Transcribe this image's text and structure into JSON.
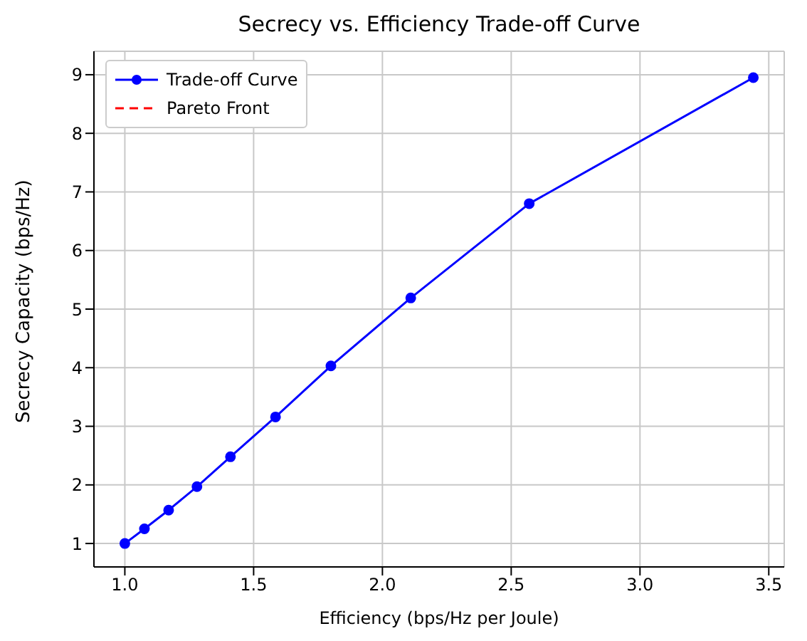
{
  "chart_data": {
    "type": "line",
    "title": "Secrecy vs. Efficiency Trade-off Curve",
    "xlabel": "Efficiency (bps/Hz per Joule)",
    "ylabel": "Secrecy Capacity (bps/Hz)",
    "x": [
      1.0,
      1.076,
      1.17,
      1.28,
      1.41,
      1.585,
      1.8,
      2.11,
      2.57,
      3.44
    ],
    "series": [
      {
        "name": "Trade-off Curve",
        "color": "#0000ff",
        "marker": "circle",
        "line_style": "solid",
        "values": [
          1.0,
          1.25,
          1.57,
          1.97,
          2.48,
          3.16,
          4.03,
          5.19,
          6.8,
          8.95
        ]
      },
      {
        "name": "Pareto Front",
        "color": "#ff0000",
        "marker": "none",
        "line_style": "dashed",
        "values": [
          null,
          null,
          null,
          null,
          null,
          null,
          null,
          null,
          null,
          null
        ]
      }
    ],
    "xlim": [
      0.88,
      3.56
    ],
    "xticks": [
      {
        "value": 1.0,
        "label": "1.0"
      },
      {
        "value": 1.5,
        "label": "1.5"
      },
      {
        "value": 2.0,
        "label": "2.0"
      },
      {
        "value": 2.5,
        "label": "2.5"
      },
      {
        "value": 3.0,
        "label": "3.0"
      },
      {
        "value": 3.5,
        "label": "3.5"
      }
    ],
    "ylim": [
      0.6,
      9.4
    ],
    "yticks": [
      1,
      2,
      3,
      4,
      5,
      6,
      7,
      8,
      9
    ],
    "grid": true,
    "legend": "top left"
  }
}
